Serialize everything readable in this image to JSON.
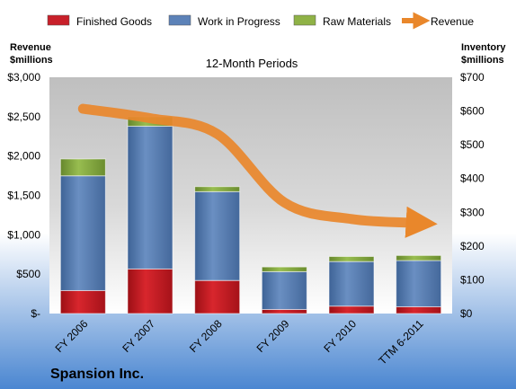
{
  "chart_data": {
    "type": "bar",
    "subtitle": "12-Month Periods",
    "company": "Spansion Inc.",
    "left_axis": {
      "label_line1": "Revenue",
      "label_line2": "$millions",
      "ylim": [
        0,
        3000
      ],
      "ticks": [
        "$-",
        "$500",
        "$1,000",
        "$1,500",
        "$2,000",
        "$2,500",
        "$3,000"
      ]
    },
    "right_axis": {
      "label_line1": "Inventory",
      "label_line2": "$millions",
      "ylim": [
        0,
        700
      ],
      "ticks": [
        "$0",
        "$100",
        "$200",
        "$300",
        "$400",
        "$500",
        "$600",
        "$700"
      ]
    },
    "categories": [
      "FY 2006",
      "FY 2007",
      "FY 2008",
      "FY 2009",
      "FY 2010",
      "TTM 6-2011"
    ],
    "series": [
      {
        "name": "Finished Goods",
        "axis": "right",
        "stack": true,
        "color": "#c0141c",
        "values": [
          68,
          132,
          98,
          12,
          22,
          20
        ]
      },
      {
        "name": "Work in Progress",
        "axis": "right",
        "stack": true,
        "color": "#4f77ad",
        "values": [
          340,
          423,
          263,
          112,
          132,
          137
        ]
      },
      {
        "name": "Raw Materials",
        "axis": "right",
        "stack": true,
        "color": "#7ea33a",
        "values": [
          50,
          28,
          15,
          14,
          15,
          15
        ]
      },
      {
        "name": "Revenue",
        "axis": "left",
        "type": "line",
        "color": "#e9872b",
        "values": [
          2600,
          2480,
          2280,
          1410,
          1200,
          1150
        ]
      }
    ],
    "legend_position": "top",
    "grid": false
  }
}
